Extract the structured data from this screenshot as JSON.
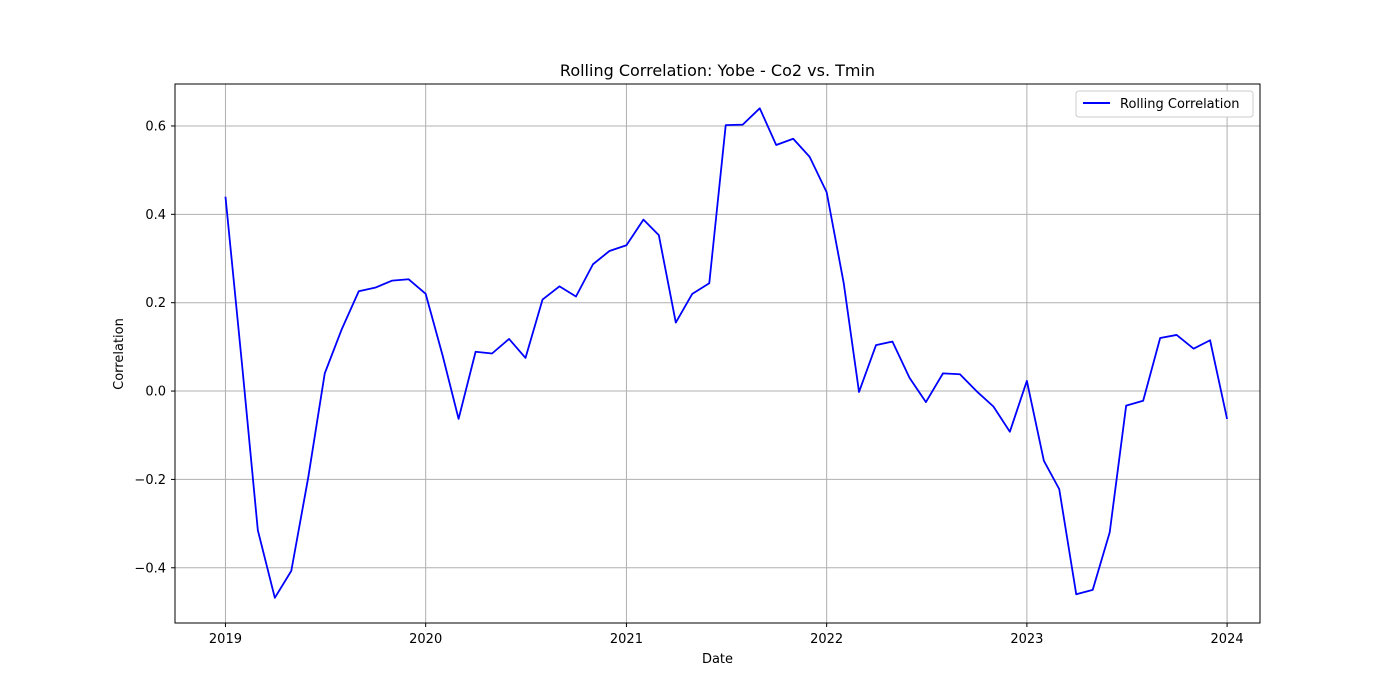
{
  "chart_data": {
    "type": "line",
    "title": "Rolling Correlation: Yobe - Co2 vs. Tmin",
    "xlabel": "Date",
    "ylabel": "Correlation",
    "x_range": [
      "2018-10-01",
      "2024-03-01"
    ],
    "ylim": [
      -0.525,
      0.695
    ],
    "x_ticks": [
      {
        "date": "2019-01-01",
        "label": "2019"
      },
      {
        "date": "2020-01-01",
        "label": "2020"
      },
      {
        "date": "2021-01-01",
        "label": "2021"
      },
      {
        "date": "2022-01-01",
        "label": "2022"
      },
      {
        "date": "2023-01-01",
        "label": "2023"
      },
      {
        "date": "2024-01-01",
        "label": "2024"
      }
    ],
    "y_ticks": [
      {
        "value": -0.4,
        "label": "−0.4"
      },
      {
        "value": -0.2,
        "label": "−0.2"
      },
      {
        "value": 0.0,
        "label": "0.0"
      },
      {
        "value": 0.2,
        "label": "0.2"
      },
      {
        "value": 0.4,
        "label": "0.4"
      },
      {
        "value": 0.6,
        "label": "0.6"
      }
    ],
    "grid": true,
    "legend_position": "top-right",
    "series": [
      {
        "name": "Rolling Correlation",
        "color": "#0000ff",
        "x": [
          "2019-01-01",
          "2019-02-01",
          "2019-03-01",
          "2019-04-01",
          "2019-05-01",
          "2019-06-01",
          "2019-07-01",
          "2019-08-01",
          "2019-09-01",
          "2019-10-01",
          "2019-11-01",
          "2019-12-01",
          "2020-01-01",
          "2020-02-01",
          "2020-03-01",
          "2020-04-01",
          "2020-05-01",
          "2020-06-01",
          "2020-07-01",
          "2020-08-01",
          "2020-09-01",
          "2020-10-01",
          "2020-11-01",
          "2020-12-01",
          "2021-01-01",
          "2021-02-01",
          "2021-03-01",
          "2021-04-01",
          "2021-05-01",
          "2021-06-01",
          "2021-07-01",
          "2021-08-01",
          "2021-09-01",
          "2021-10-01",
          "2021-11-01",
          "2021-12-01",
          "2022-01-01",
          "2022-02-01",
          "2022-03-01",
          "2022-04-01",
          "2022-05-01",
          "2022-06-01",
          "2022-07-01",
          "2022-08-01",
          "2022-09-01",
          "2022-10-01",
          "2022-11-01",
          "2022-12-01",
          "2023-01-01",
          "2023-02-01",
          "2023-03-01",
          "2023-04-01",
          "2023-05-01",
          "2023-06-01",
          "2023-07-01",
          "2023-08-01",
          "2023-09-01",
          "2023-10-01",
          "2023-11-01",
          "2023-12-01",
          "2024-01-01"
        ],
        "values": [
          0.44,
          0.05,
          -0.315,
          -0.468,
          -0.407,
          -0.195,
          0.04,
          0.14,
          0.226,
          0.234,
          0.25,
          0.253,
          0.22,
          0.08,
          -0.063,
          0.089,
          0.085,
          0.118,
          0.075,
          0.207,
          0.237,
          0.214,
          0.287,
          0.317,
          0.33,
          0.388,
          0.353,
          0.155,
          0.22,
          0.244,
          0.602,
          0.603,
          0.64,
          0.557,
          0.571,
          0.53,
          0.45,
          0.245,
          -0.002,
          0.104,
          0.112,
          0.03,
          -0.025,
          0.04,
          0.038,
          0.0,
          -0.035,
          -0.092,
          0.023,
          -0.158,
          -0.222,
          -0.46,
          -0.45,
          -0.32,
          -0.033,
          -0.022,
          0.12,
          0.127,
          0.096,
          0.115,
          -0.063
        ]
      }
    ]
  }
}
